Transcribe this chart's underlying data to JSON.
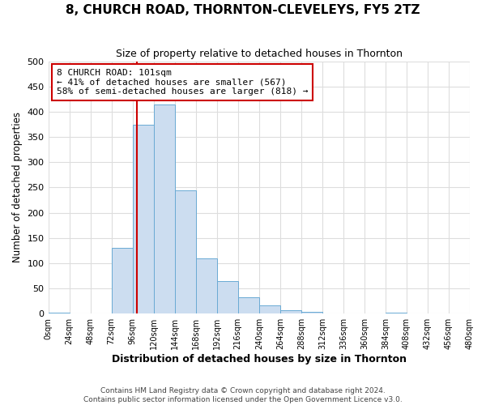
{
  "title": "8, CHURCH ROAD, THORNTON-CLEVELEYS, FY5 2TZ",
  "subtitle": "Size of property relative to detached houses in Thornton",
  "xlabel": "Distribution of detached houses by size in Thornton",
  "ylabel": "Number of detached properties",
  "bar_color": "#ccddf0",
  "bar_edge_color": "#6aaad4",
  "bin_edges": [
    0,
    24,
    48,
    72,
    96,
    120,
    144,
    168,
    192,
    216,
    240,
    264,
    288,
    312,
    336,
    360,
    384,
    408,
    432,
    456,
    480
  ],
  "bar_heights": [
    2,
    0,
    0,
    130,
    375,
    415,
    245,
    110,
    65,
    33,
    16,
    7,
    4,
    0,
    0,
    0,
    2,
    0,
    0,
    0
  ],
  "property_size": 101,
  "vline_color": "#cc0000",
  "annotation_line1": "8 CHURCH ROAD: 101sqm",
  "annotation_line2": "← 41% of detached houses are smaller (567)",
  "annotation_line3": "58% of semi-detached houses are larger (818) →",
  "annotation_box_edge": "#cc0000",
  "annotation_box_face": "#ffffff",
  "ylim": [
    0,
    500
  ],
  "xlim": [
    0,
    480
  ],
  "tick_labels": [
    "0sqm",
    "24sqm",
    "48sqm",
    "72sqm",
    "96sqm",
    "120sqm",
    "144sqm",
    "168sqm",
    "192sqm",
    "216sqm",
    "240sqm",
    "264sqm",
    "288sqm",
    "312sqm",
    "336sqm",
    "360sqm",
    "384sqm",
    "408sqm",
    "432sqm",
    "456sqm",
    "480sqm"
  ],
  "footer_line1": "Contains HM Land Registry data © Crown copyright and database right 2024.",
  "footer_line2": "Contains public sector information licensed under the Open Government Licence v3.0.",
  "background_color": "#ffffff",
  "grid_color": "#dddddd"
}
